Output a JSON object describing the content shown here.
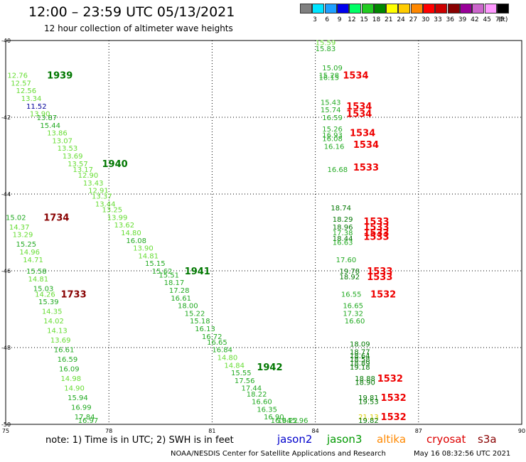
{
  "header": {
    "title": "12:00 – 23:59 UTC 05/13/2021",
    "subtitle": "12 hour collection of altimeter wave heights"
  },
  "legend": {
    "unit": "(ft)",
    "items": [
      {
        "label": "3",
        "color": "#808080"
      },
      {
        "label": "6",
        "color": "#00e5ff"
      },
      {
        "label": "9",
        "color": "#1ea0ff"
      },
      {
        "label": "12",
        "color": "#0000ee"
      },
      {
        "label": "15",
        "color": "#00ff66"
      },
      {
        "label": "18",
        "color": "#22cc22"
      },
      {
        "label": "21",
        "color": "#008800"
      },
      {
        "label": "24",
        "color": "#ffff00"
      },
      {
        "label": "27",
        "color": "#ffcc00"
      },
      {
        "label": "30",
        "color": "#ff8800"
      },
      {
        "label": "33",
        "color": "#ff0000"
      },
      {
        "label": "36",
        "color": "#cc0000"
      },
      {
        "label": "39",
        "color": "#880000"
      },
      {
        "label": "42",
        "color": "#990099"
      },
      {
        "label": "45",
        "color": "#cc66cc"
      },
      {
        "label": "70",
        "color": "#ff99ff"
      },
      {
        "label": "",
        "color": "#000000"
      }
    ]
  },
  "map": {
    "lon_range": [
      75,
      90
    ],
    "lat_range": [
      -50,
      -40
    ],
    "lon_ticks": [
      "75",
      "78",
      "81",
      "84",
      "87",
      "90"
    ],
    "lat_ticks": [
      "-40",
      "-42",
      "-44",
      "-46",
      "-48",
      "-50"
    ]
  },
  "colors": {
    "lightgreen": "#66dd33",
    "green": "#22aa22",
    "darkgreen": "#007700",
    "blue": "#000099",
    "yellow": "#ddcc00",
    "red": "#ee0000",
    "darkred": "#880000"
  },
  "track_labels": [
    {
      "text": "1939",
      "lon": 76.2,
      "lat": -40.9,
      "c": "darkgreen"
    },
    {
      "text": "1940",
      "lon": 77.8,
      "lat": -43.2,
      "c": "darkgreen"
    },
    {
      "text": "1941",
      "lon": 80.2,
      "lat": -46.0,
      "c": "darkgreen"
    },
    {
      "text": "1942",
      "lon": 82.3,
      "lat": -48.5,
      "c": "darkgreen"
    },
    {
      "text": "1734",
      "lon": 76.1,
      "lat": -44.6,
      "c": "darkred"
    },
    {
      "text": "1733",
      "lon": 76.6,
      "lat": -46.6,
      "c": "darkred"
    },
    {
      "text": "1534",
      "lon": 84.8,
      "lat": -40.9,
      "c": "red"
    },
    {
      "text": "1534",
      "lon": 84.9,
      "lat": -41.7,
      "c": "red"
    },
    {
      "text": "1534",
      "lon": 84.9,
      "lat": -41.9,
      "c": "red"
    },
    {
      "text": "1534",
      "lon": 85.0,
      "lat": -42.4,
      "c": "red"
    },
    {
      "text": "1534",
      "lon": 85.1,
      "lat": -42.7,
      "c": "red"
    },
    {
      "text": "1533",
      "lon": 85.1,
      "lat": -43.3,
      "c": "red"
    },
    {
      "text": "1533",
      "lon": 85.4,
      "lat": -44.7,
      "c": "red"
    },
    {
      "text": "1533",
      "lon": 85.4,
      "lat": -44.85,
      "c": "red"
    },
    {
      "text": "1533",
      "lon": 85.4,
      "lat": -45.0,
      "c": "red"
    },
    {
      "text": "1533",
      "lon": 85.4,
      "lat": -45.1,
      "c": "red"
    },
    {
      "text": "1533",
      "lon": 85.5,
      "lat": -46.0,
      "c": "red"
    },
    {
      "text": "1533",
      "lon": 85.5,
      "lat": -46.15,
      "c": "red"
    },
    {
      "text": "1532",
      "lon": 85.6,
      "lat": -46.6,
      "c": "red"
    },
    {
      "text": "1532",
      "lon": 85.8,
      "lat": -48.8,
      "c": "red"
    },
    {
      "text": "1532",
      "lon": 85.9,
      "lat": -49.3,
      "c": "red"
    },
    {
      "text": "1532",
      "lon": 85.9,
      "lat": -49.8,
      "c": "red"
    }
  ],
  "observations": [
    {
      "text": "12.76",
      "lon": 75.05,
      "lat": -40.9,
      "c": "lightgreen"
    },
    {
      "text": "12.57",
      "lon": 75.15,
      "lat": -41.1,
      "c": "lightgreen"
    },
    {
      "text": "12.56",
      "lon": 75.3,
      "lat": -41.3,
      "c": "lightgreen"
    },
    {
      "text": "13.34",
      "lon": 75.45,
      "lat": -41.5,
      "c": "lightgreen"
    },
    {
      "text": "11.52",
      "lon": 75.6,
      "lat": -41.7,
      "c": "blue"
    },
    {
      "text": "13.90",
      "lon": 75.7,
      "lat": -41.9,
      "c": "lightgreen"
    },
    {
      "text": "13.87",
      "lon": 75.9,
      "lat": -42.0,
      "c": "green"
    },
    {
      "text": "15.44",
      "lon": 76.0,
      "lat": -42.2,
      "c": "green"
    },
    {
      "text": "13.86",
      "lon": 76.2,
      "lat": -42.4,
      "c": "lightgreen"
    },
    {
      "text": "13.07",
      "lon": 76.35,
      "lat": -42.6,
      "c": "lightgreen"
    },
    {
      "text": "13.53",
      "lon": 76.5,
      "lat": -42.8,
      "c": "lightgreen"
    },
    {
      "text": "13.69",
      "lon": 76.65,
      "lat": -43.0,
      "c": "lightgreen"
    },
    {
      "text": "13.57",
      "lon": 76.8,
      "lat": -43.2,
      "c": "lightgreen"
    },
    {
      "text": "13.17",
      "lon": 76.95,
      "lat": -43.35,
      "c": "lightgreen"
    },
    {
      "text": "12.90",
      "lon": 77.1,
      "lat": -43.5,
      "c": "lightgreen"
    },
    {
      "text": "13.43",
      "lon": 77.25,
      "lat": -43.7,
      "c": "lightgreen"
    },
    {
      "text": "12.91",
      "lon": 77.4,
      "lat": -43.9,
      "c": "lightgreen"
    },
    {
      "text": "13.37",
      "lon": 77.5,
      "lat": -44.05,
      "c": "lightgreen"
    },
    {
      "text": "13.44",
      "lon": 77.6,
      "lat": -44.25,
      "c": "lightgreen"
    },
    {
      "text": "13.25",
      "lon": 77.8,
      "lat": -44.4,
      "c": "lightgreen"
    },
    {
      "text": "13.99",
      "lon": 77.95,
      "lat": -44.6,
      "c": "lightgreen"
    },
    {
      "text": "13.62",
      "lon": 78.15,
      "lat": -44.8,
      "c": "lightgreen"
    },
    {
      "text": "14.80",
      "lon": 78.35,
      "lat": -45.0,
      "c": "lightgreen"
    },
    {
      "text": "16.08",
      "lon": 78.5,
      "lat": -45.2,
      "c": "green"
    },
    {
      "text": "13.90",
      "lon": 78.7,
      "lat": -45.4,
      "c": "lightgreen"
    },
    {
      "text": "14.81",
      "lon": 78.85,
      "lat": -45.6,
      "c": "lightgreen"
    },
    {
      "text": "15.15",
      "lon": 79.05,
      "lat": -45.8,
      "c": "green"
    },
    {
      "text": "15.62",
      "lon": 79.25,
      "lat": -46.0,
      "c": "green"
    },
    {
      "text": "15.51",
      "lon": 79.45,
      "lat": -46.1,
      "c": "green"
    },
    {
      "text": "18.17",
      "lon": 79.6,
      "lat": -46.3,
      "c": "green"
    },
    {
      "text": "17.28",
      "lon": 79.75,
      "lat": -46.5,
      "c": "green"
    },
    {
      "text": "16.61",
      "lon": 79.8,
      "lat": -46.7,
      "c": "green"
    },
    {
      "text": "18.00",
      "lon": 80.0,
      "lat": -46.9,
      "c": "green"
    },
    {
      "text": "15.22",
      "lon": 80.2,
      "lat": -47.1,
      "c": "green"
    },
    {
      "text": "15.18",
      "lon": 80.35,
      "lat": -47.3,
      "c": "green"
    },
    {
      "text": "16.13",
      "lon": 80.5,
      "lat": -47.5,
      "c": "green"
    },
    {
      "text": "16.72",
      "lon": 80.7,
      "lat": -47.7,
      "c": "green"
    },
    {
      "text": "16.65",
      "lon": 80.85,
      "lat": -47.85,
      "c": "green"
    },
    {
      "text": "16.84",
      "lon": 81.0,
      "lat": -48.05,
      "c": "green"
    },
    {
      "text": "14.80",
      "lon": 81.15,
      "lat": -48.25,
      "c": "lightgreen"
    },
    {
      "text": "14.84",
      "lon": 81.35,
      "lat": -48.45,
      "c": "lightgreen"
    },
    {
      "text": "15.55",
      "lon": 81.55,
      "lat": -48.65,
      "c": "green"
    },
    {
      "text": "17.56",
      "lon": 81.65,
      "lat": -48.85,
      "c": "green"
    },
    {
      "text": "17.44",
      "lon": 81.85,
      "lat": -49.05,
      "c": "green"
    },
    {
      "text": "18.22",
      "lon": 82.0,
      "lat": -49.2,
      "c": "green"
    },
    {
      "text": "16.60",
      "lon": 82.15,
      "lat": -49.4,
      "c": "green"
    },
    {
      "text": "16.35",
      "lon": 82.3,
      "lat": -49.6,
      "c": "green"
    },
    {
      "text": "16.90",
      "lon": 82.5,
      "lat": -49.8,
      "c": "green"
    },
    {
      "text": "16.94",
      "lon": 82.7,
      "lat": -50.0,
      "c": "green"
    },
    {
      "text": "16.22",
      "lon": 82.9,
      "lat": -50.2,
      "c": "green"
    },
    {
      "text": "15.96",
      "lon": 83.2,
      "lat": -50.4,
      "c": "green"
    },
    {
      "text": "15.02",
      "lon": 75.0,
      "lat": -44.6,
      "c": "green"
    },
    {
      "text": "14.37",
      "lon": 75.1,
      "lat": -44.85,
      "c": "lightgreen"
    },
    {
      "text": "13.29",
      "lon": 75.2,
      "lat": -45.05,
      "c": "lightgreen"
    },
    {
      "text": "15.25",
      "lon": 75.3,
      "lat": -45.3,
      "c": "green"
    },
    {
      "text": "14.96",
      "lon": 75.4,
      "lat": -45.5,
      "c": "lightgreen"
    },
    {
      "text": "14.71",
      "lon": 75.5,
      "lat": -45.7,
      "c": "lightgreen"
    },
    {
      "text": "15.58",
      "lon": 75.6,
      "lat": -46.0,
      "c": "green"
    },
    {
      "text": "14.81",
      "lon": 75.65,
      "lat": -46.2,
      "c": "lightgreen"
    },
    {
      "text": "15.03",
      "lon": 75.8,
      "lat": -46.45,
      "c": "green"
    },
    {
      "text": "14.26",
      "lon": 75.85,
      "lat": -46.6,
      "c": "lightgreen"
    },
    {
      "text": "15.39",
      "lon": 75.95,
      "lat": -46.8,
      "c": "green"
    },
    {
      "text": "14.35",
      "lon": 76.05,
      "lat": -47.05,
      "c": "lightgreen"
    },
    {
      "text": "14.02",
      "lon": 76.1,
      "lat": -47.3,
      "c": "lightgreen"
    },
    {
      "text": "14.13",
      "lon": 76.2,
      "lat": -47.55,
      "c": "lightgreen"
    },
    {
      "text": "13.69",
      "lon": 76.3,
      "lat": -47.8,
      "c": "lightgreen"
    },
    {
      "text": "16.61",
      "lon": 76.4,
      "lat": -48.05,
      "c": "green"
    },
    {
      "text": "16.59",
      "lon": 76.5,
      "lat": -48.3,
      "c": "green"
    },
    {
      "text": "16.09",
      "lon": 76.55,
      "lat": -48.55,
      "c": "green"
    },
    {
      "text": "14.98",
      "lon": 76.6,
      "lat": -48.8,
      "c": "lightgreen"
    },
    {
      "text": "14.90",
      "lon": 76.7,
      "lat": -49.05,
      "c": "lightgreen"
    },
    {
      "text": "15.94",
      "lon": 76.8,
      "lat": -49.3,
      "c": "green"
    },
    {
      "text": "16.99",
      "lon": 76.9,
      "lat": -49.55,
      "c": "green"
    },
    {
      "text": "17.84",
      "lon": 77.0,
      "lat": -49.8,
      "c": "green"
    },
    {
      "text": "16.97",
      "lon": 77.1,
      "lat": -50.05,
      "c": "green"
    },
    {
      "text": "15.59",
      "lon": 84.0,
      "lat": -40.05,
      "c": "lightgreen"
    },
    {
      "text": "15.83",
      "lon": 84.0,
      "lat": -40.2,
      "c": "green"
    },
    {
      "text": "15.09",
      "lon": 84.2,
      "lat": -40.7,
      "c": "green"
    },
    {
      "text": "15.28",
      "lon": 84.1,
      "lat": -40.9,
      "c": "green"
    },
    {
      "text": "16.15",
      "lon": 84.1,
      "lat": -40.95,
      "c": "green"
    },
    {
      "text": "15.43",
      "lon": 84.15,
      "lat": -41.6,
      "c": "green"
    },
    {
      "text": "15.74",
      "lon": 84.15,
      "lat": -41.8,
      "c": "green"
    },
    {
      "text": "16.59",
      "lon": 84.2,
      "lat": -42.0,
      "c": "green"
    },
    {
      "text": "15.26",
      "lon": 84.2,
      "lat": -42.3,
      "c": "green"
    },
    {
      "text": "16.93",
      "lon": 84.2,
      "lat": -42.45,
      "c": "green"
    },
    {
      "text": "16.08",
      "lon": 84.2,
      "lat": -42.55,
      "c": "green"
    },
    {
      "text": "16.16",
      "lon": 84.25,
      "lat": -42.75,
      "c": "green"
    },
    {
      "text": "16.68",
      "lon": 84.35,
      "lat": -43.35,
      "c": "green"
    },
    {
      "text": "18.74",
      "lon": 84.45,
      "lat": -44.35,
      "c": "darkgreen"
    },
    {
      "text": "18.29",
      "lon": 84.5,
      "lat": -44.65,
      "c": "darkgreen"
    },
    {
      "text": "18.96",
      "lon": 84.5,
      "lat": -44.85,
      "c": "darkgreen"
    },
    {
      "text": "17.38",
      "lon": 84.5,
      "lat": -45.0,
      "c": "green"
    },
    {
      "text": "18.44",
      "lon": 84.5,
      "lat": -45.15,
      "c": "darkgreen"
    },
    {
      "text": "16.63",
      "lon": 84.5,
      "lat": -45.25,
      "c": "green"
    },
    {
      "text": "17.60",
      "lon": 84.6,
      "lat": -45.7,
      "c": "green"
    },
    {
      "text": "19.78",
      "lon": 84.7,
      "lat": -46.0,
      "c": "darkgreen"
    },
    {
      "text": "18.92",
      "lon": 84.7,
      "lat": -46.15,
      "c": "darkgreen"
    },
    {
      "text": "16.55",
      "lon": 84.75,
      "lat": -46.6,
      "c": "green"
    },
    {
      "text": "16.65",
      "lon": 84.8,
      "lat": -46.9,
      "c": "green"
    },
    {
      "text": "17.32",
      "lon": 84.8,
      "lat": -47.1,
      "c": "green"
    },
    {
      "text": "16.60",
      "lon": 84.85,
      "lat": -47.3,
      "c": "green"
    },
    {
      "text": "18.09",
      "lon": 85.0,
      "lat": -47.9,
      "c": "darkgreen"
    },
    {
      "text": "18.77",
      "lon": 85.0,
      "lat": -48.1,
      "c": "darkgreen"
    },
    {
      "text": "18.64",
      "lon": 85.0,
      "lat": -48.2,
      "c": "darkgreen"
    },
    {
      "text": "18.58",
      "lon": 85.0,
      "lat": -48.3,
      "c": "darkgreen"
    },
    {
      "text": "18.89",
      "lon": 85.0,
      "lat": -48.4,
      "c": "darkgreen"
    },
    {
      "text": "19.18",
      "lon": 85.0,
      "lat": -48.5,
      "c": "darkgreen"
    },
    {
      "text": "18.88",
      "lon": 85.15,
      "lat": -48.8,
      "c": "darkgreen"
    },
    {
      "text": "18.90",
      "lon": 85.15,
      "lat": -48.9,
      "c": "darkgreen"
    },
    {
      "text": "19.81",
      "lon": 85.25,
      "lat": -49.3,
      "c": "darkgreen"
    },
    {
      "text": "19.53",
      "lon": 85.25,
      "lat": -49.4,
      "c": "darkgreen"
    },
    {
      "text": "21.13",
      "lon": 85.25,
      "lat": -49.8,
      "c": "yellow"
    },
    {
      "text": "19.82",
      "lon": 85.25,
      "lat": -50.0,
      "c": "darkgreen"
    }
  ],
  "footer": {
    "note": "note: 1) Time is in UTC; 2) SWH is in feet",
    "satellites": [
      {
        "name": "jason2",
        "color": "#0000cc"
      },
      {
        "name": "jason3",
        "color": "#009900"
      },
      {
        "name": "altika",
        "color": "#ff8800"
      },
      {
        "name": "cryosat",
        "color": "#dd0000"
      },
      {
        "name": "s3a",
        "color": "#880000"
      }
    ],
    "credit": "NOAA/NESDIS Center for Satellite Applications and Research",
    "timestamp": "May 16 08:32:56 UTC 2021"
  }
}
